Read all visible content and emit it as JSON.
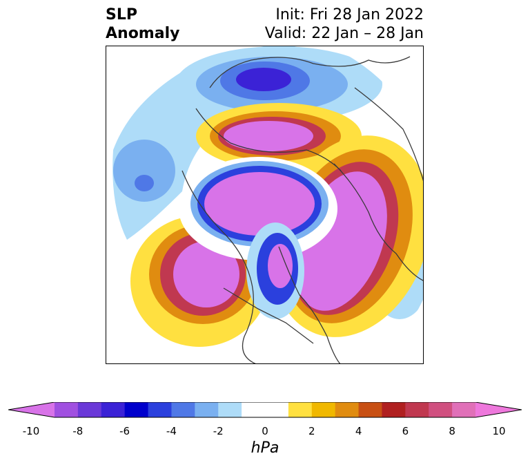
{
  "title": {
    "variable": "SLP",
    "kind": "Anomaly",
    "init": "Init: Fri 28 Jan 2022",
    "valid": "Valid: 22 Jan – 28 Jan"
  },
  "colorbar": {
    "unit": "hPa",
    "ticks": [
      "-10",
      "-8",
      "-6",
      "-4",
      "-2",
      "0",
      "2",
      "4",
      "6",
      "8",
      "10"
    ],
    "colors": [
      "#d873e8",
      "#a050e0",
      "#6a38d8",
      "#3b22d6",
      "#0000cc",
      "#2b40dd",
      "#4f78e6",
      "#7ab0f0",
      "#aedcf8",
      "#ffffff",
      "#ffffff",
      "#ffe040",
      "#f0b800",
      "#e08c10",
      "#c85014",
      "#b02020",
      "#c03850",
      "#d05080",
      "#e070b8",
      "#ee78dc"
    ],
    "extend": "both"
  },
  "map": {
    "projection": "polar stereographic",
    "field": "sea level pressure anomaly",
    "color_neg": "#d873e8",
    "color_pos": "#ee78dc"
  }
}
